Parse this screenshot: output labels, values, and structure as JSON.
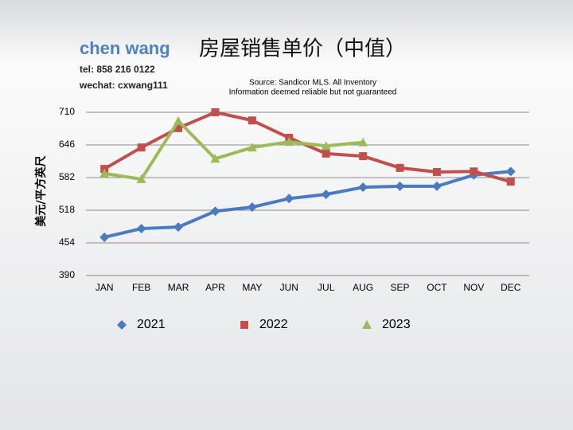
{
  "chart_data": {
    "type": "line",
    "title": "房屋销售单价（中值）",
    "author": "chen wang",
    "contact": [
      "tel: 858 216 0122",
      "wechat: cxwang111"
    ],
    "source": [
      "Source: Sandicor MLS. All Inventory",
      "Information deemed reliable but not guaranteed"
    ],
    "y_label": "美元/平方英尺",
    "categories": [
      "JAN",
      "FEB",
      "MAR",
      "APR",
      "MAY",
      "JUN",
      "JUL",
      "AUG",
      "SEP",
      "OCT",
      "NOV",
      "DEC"
    ],
    "series": [
      {
        "name": "2021",
        "color": "#4a7bc0",
        "marker": "diamond",
        "values": [
          465,
          482,
          485,
          516,
          524,
          541,
          549,
          563,
          565,
          565,
          587,
          594
        ]
      },
      {
        "name": "2022",
        "color": "#c0504d",
        "marker": "square",
        "values": [
          599,
          641,
          679,
          710,
          694,
          660,
          629,
          624,
          601,
          593,
          594,
          574
        ]
      },
      {
        "name": "2023",
        "color": "#9bbb59",
        "marker": "triangle",
        "values": [
          590,
          579,
          693,
          619,
          641,
          652,
          644,
          651,
          null,
          null,
          null,
          null
        ]
      }
    ],
    "ylim": [
      390,
      710
    ],
    "yticks": [
      390,
      454,
      518,
      582,
      646,
      710
    ],
    "grid": true,
    "legend": "bottom"
  }
}
